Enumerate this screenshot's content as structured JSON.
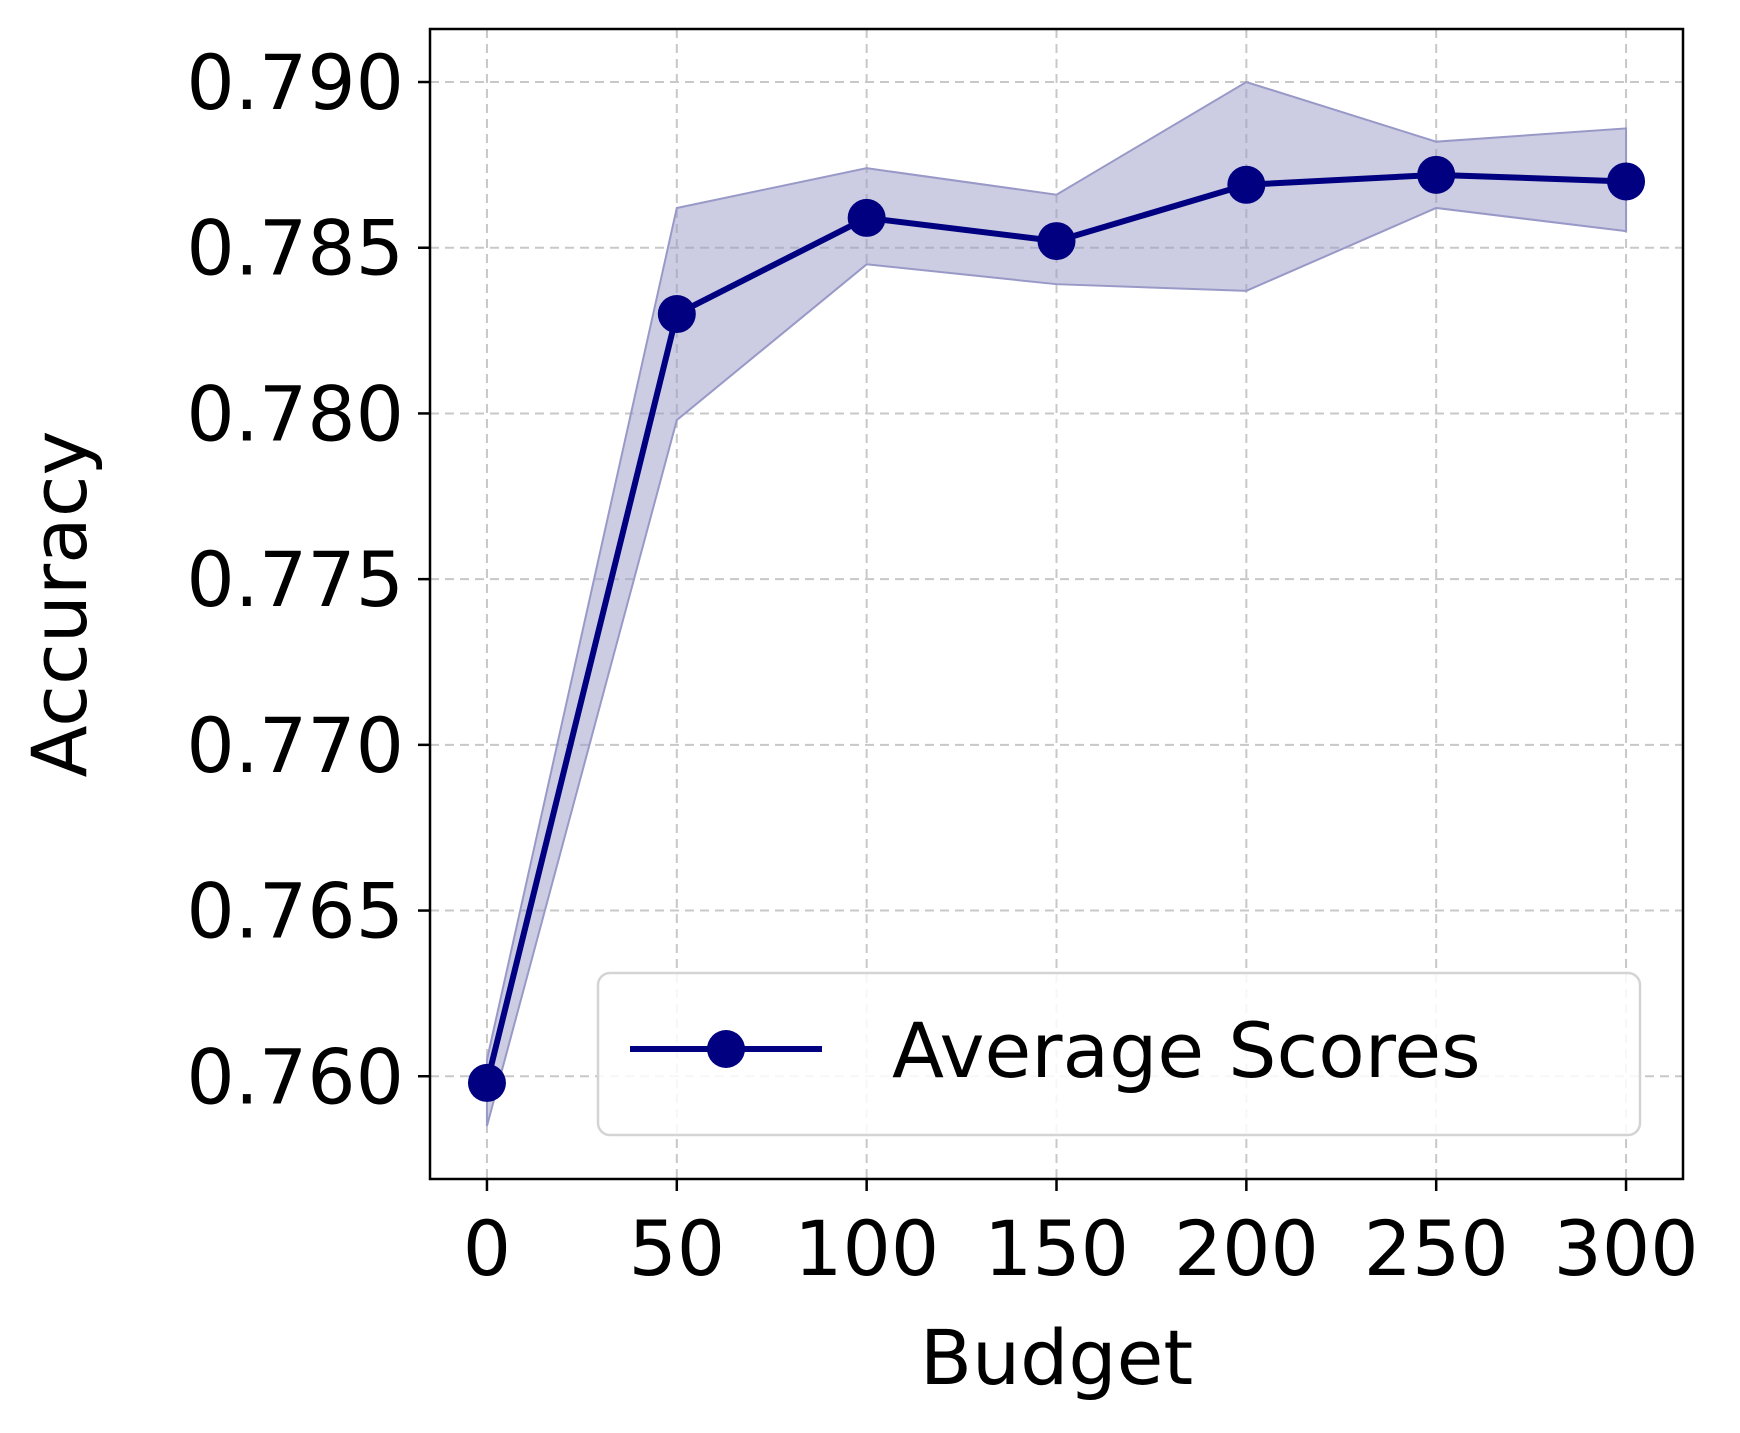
{
  "chart_data": {
    "type": "line",
    "title": "",
    "xlabel": "Budget",
    "ylabel": "Accuracy",
    "xlim": [
      -15,
      315
    ],
    "ylim": [
      0.7569,
      0.7916
    ],
    "x_ticks": [
      0,
      50,
      100,
      150,
      200,
      250,
      300
    ],
    "y_ticks": [
      0.76,
      0.765,
      0.77,
      0.775,
      0.78,
      0.785,
      0.79
    ],
    "x_tick_labels": [
      "0",
      "50",
      "100",
      "150",
      "200",
      "250",
      "300"
    ],
    "y_tick_labels": [
      "0.760",
      "0.765",
      "0.770",
      "0.775",
      "0.780",
      "0.785",
      "0.790"
    ],
    "grid": true,
    "legend_position": "lower-right",
    "series": [
      {
        "name": "Average Scores",
        "color": "#000080",
        "band_color": "#9999c8",
        "x": [
          0,
          50,
          100,
          150,
          200,
          250,
          300
        ],
        "y": [
          0.7598,
          0.783,
          0.7859,
          0.7852,
          0.7869,
          0.7872,
          0.787
        ],
        "band_lower": [
          0.7585,
          0.7798,
          0.7845,
          0.7839,
          0.7837,
          0.7862,
          0.7855
        ],
        "band_upper": [
          0.7605,
          0.7862,
          0.7874,
          0.7866,
          0.79,
          0.7882,
          0.7886
        ]
      }
    ]
  }
}
